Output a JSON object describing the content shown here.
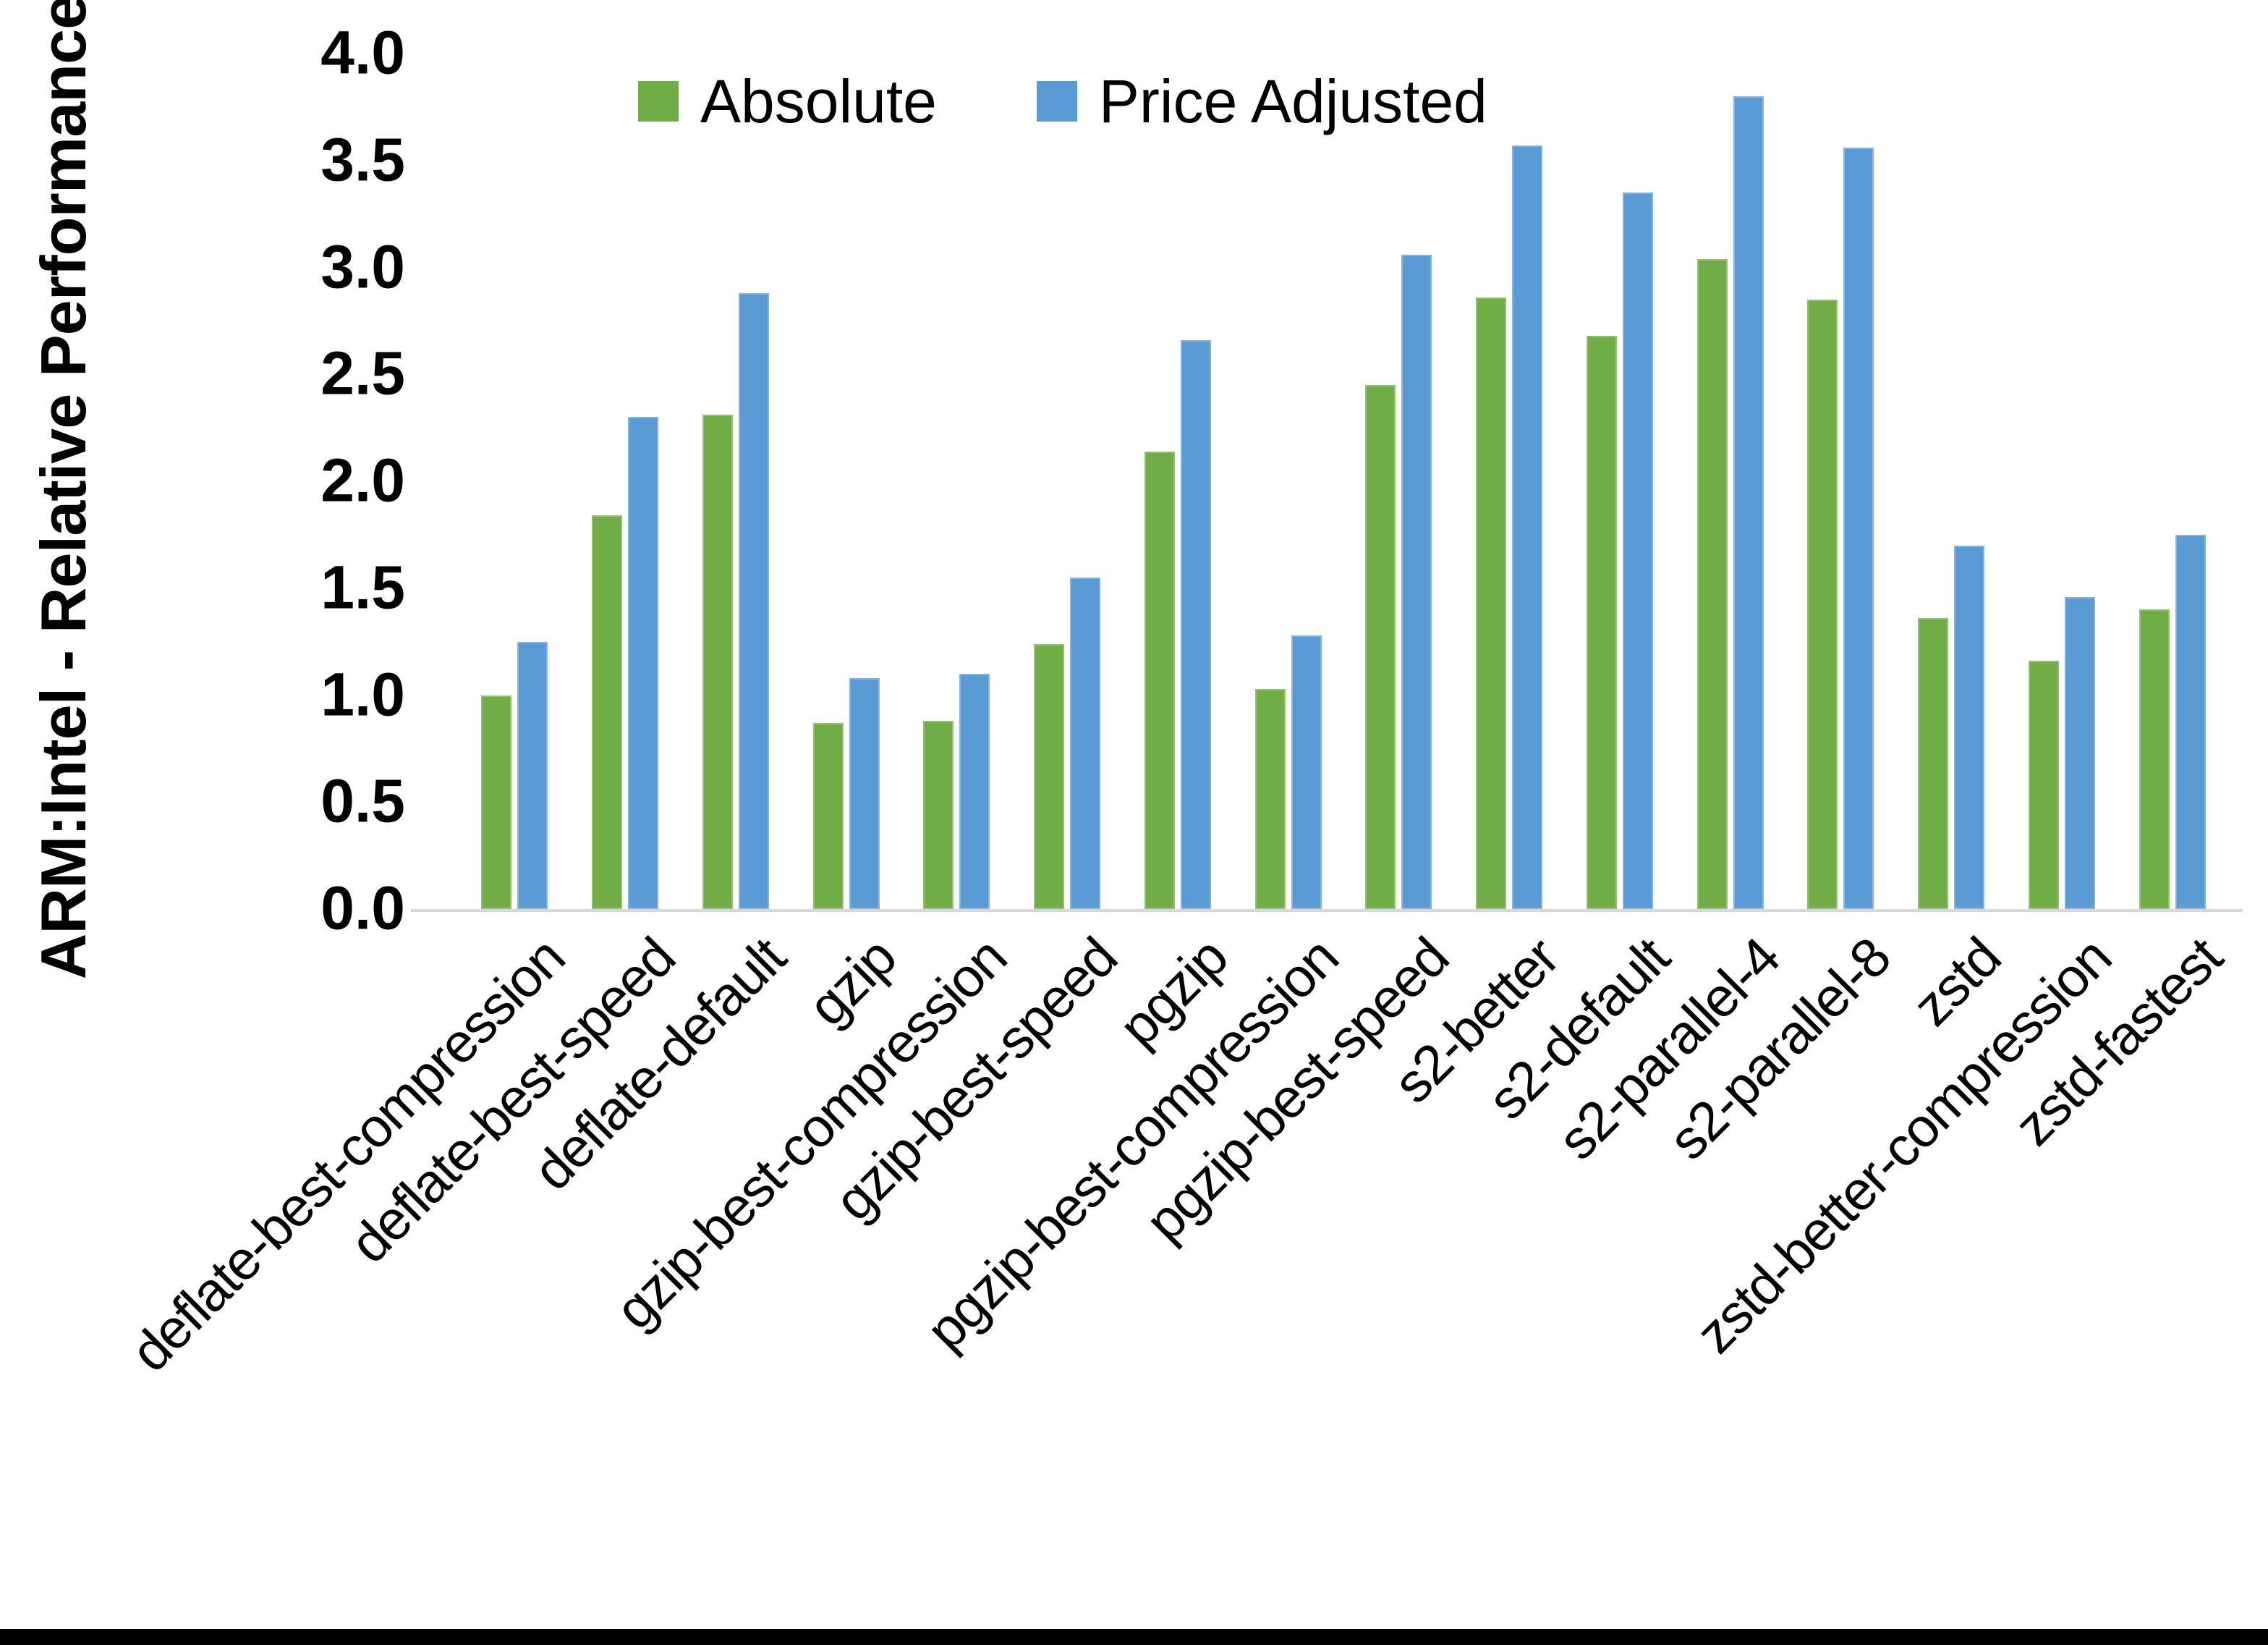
{
  "page": {
    "background": "#FFFFFF",
    "bottom_border_color": "#000000"
  },
  "chart_data": {
    "type": "bar",
    "title": "",
    "xlabel": "",
    "ylabel": "ARM:Intel - Relative Performance",
    "ylim": [
      0.0,
      4.0
    ],
    "ytick_step": 0.5,
    "yticks": [
      "0.0",
      "0.5",
      "1.0",
      "1.5",
      "2.0",
      "2.5",
      "3.0",
      "3.5",
      "4.0"
    ],
    "grid": "off",
    "legend_position": "top-center",
    "axis_line_color": "#D9D9D9",
    "text_color": "#000000",
    "categories": [
      "deflate-best-compression",
      "deflate-best-speed",
      "deflate-default",
      "gzip",
      "gzip-best-compression",
      "gzip-best-speed",
      "pgzip",
      "pgzip-best-compression",
      "pgzip-best-speed",
      "s2-better",
      "s2-default",
      "s2-parallel-4",
      "s2-parallel-8",
      "zstd",
      "zstd-better-compression",
      "zstd-fastest"
    ],
    "series": [
      {
        "name": "Absolute",
        "color": "#70AD47",
        "values": [
          1.0,
          1.84,
          2.31,
          0.87,
          0.88,
          1.24,
          2.14,
          1.03,
          2.45,
          2.86,
          2.68,
          3.04,
          2.85,
          1.36,
          1.16,
          1.4
        ]
      },
      {
        "name": "Price Adjusted",
        "color": "#5B9BD5",
        "values": [
          1.25,
          2.3,
          2.88,
          1.08,
          1.1,
          1.55,
          2.66,
          1.28,
          3.06,
          3.57,
          3.35,
          3.8,
          3.56,
          1.7,
          1.46,
          1.75
        ]
      }
    ]
  }
}
